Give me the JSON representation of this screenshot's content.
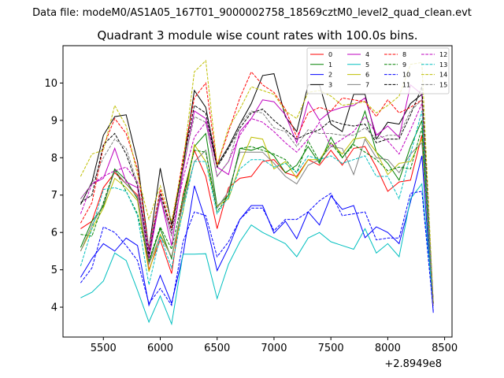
{
  "suptitle": "Data file: modeM0/AS1A05_167T01_9000002758_18569cztM0_level2_quad_clean.evt",
  "chart_data": {
    "type": "line",
    "title": "Quadrant 3 module wise count rates with 100.0s bins.",
    "xlabel": "",
    "ylabel": "",
    "x_offset_label": "+2.8949e8",
    "xlim": [
      5145,
      8565
    ],
    "ylim": [
      3.2,
      11.0
    ],
    "xticks": [
      5500,
      6000,
      6500,
      7000,
      7500,
      8000,
      8500
    ],
    "yticks": [
      4,
      5,
      6,
      7,
      8,
      9,
      10
    ],
    "x": [
      5300,
      5400,
      5500,
      5600,
      5700,
      5800,
      5900,
      6000,
      6100,
      6200,
      6300,
      6400,
      6500,
      6600,
      6700,
      6800,
      6900,
      7000,
      7100,
      7200,
      7300,
      7400,
      7500,
      7600,
      7700,
      7800,
      7900,
      8000,
      8100,
      8200,
      8300,
      8400
    ],
    "legend_location": "top-right",
    "series": [
      {
        "name": "0",
        "color": "#ff0000",
        "dash": "solid",
        "values": [
          6.1,
          6.3,
          7.2,
          7.6,
          7.3,
          7.0,
          5.0,
          5.8,
          4.9,
          7.0,
          8.2,
          7.5,
          6.1,
          7.2,
          7.45,
          7.5,
          7.9,
          7.95,
          7.6,
          7.5,
          7.95,
          7.8,
          8.2,
          7.8,
          8.25,
          8.3,
          7.75,
          7.1,
          7.35,
          7.4,
          8.6,
          4.1
        ]
      },
      {
        "name": "1",
        "color": "#008000",
        "dash": "solid",
        "values": [
          5.6,
          6.3,
          6.7,
          7.7,
          7.4,
          6.9,
          5.2,
          6.1,
          5.3,
          6.8,
          8.3,
          8.65,
          6.7,
          7.0,
          8.25,
          8.2,
          8.3,
          8.05,
          7.6,
          7.8,
          8.3,
          7.85,
          8.55,
          8.0,
          8.4,
          9.25,
          8.15,
          7.85,
          7.4,
          8.3,
          9.0,
          4.1
        ]
      },
      {
        "name": "2",
        "color": "#0000ff",
        "dash": "solid",
        "values": [
          4.8,
          5.3,
          5.7,
          5.5,
          5.85,
          5.65,
          4.05,
          4.85,
          4.1,
          5.4,
          7.25,
          6.3,
          4.98,
          5.6,
          6.35,
          6.72,
          6.72,
          5.98,
          6.3,
          5.83,
          6.55,
          6.2,
          6.98,
          6.62,
          6.72,
          5.86,
          6.15,
          6.0,
          5.7,
          6.82,
          8.05,
          3.85
        ]
      },
      {
        "name": "3",
        "color": "#000000",
        "dash": "solid",
        "values": [
          6.75,
          7.35,
          8.6,
          9.1,
          9.15,
          7.9,
          5.55,
          7.72,
          6.2,
          7.75,
          9.8,
          9.35,
          7.8,
          8.3,
          8.9,
          9.45,
          10.2,
          10.25,
          9.1,
          8.7,
          9.95,
          9.95,
          8.9,
          8.7,
          9.7,
          9.7,
          8.5,
          8.95,
          8.9,
          9.45,
          9.7,
          4.1
        ]
      },
      {
        "name": "4",
        "color": "#bf00bf",
        "dash": "solid",
        "values": [
          6.9,
          7.3,
          7.45,
          8.25,
          7.35,
          7.2,
          5.3,
          6.95,
          5.65,
          7.65,
          9.25,
          9.05,
          7.75,
          7.55,
          8.7,
          9.05,
          9.55,
          9.5,
          9.15,
          8.4,
          9.5,
          9.0,
          9.25,
          9.35,
          9.4,
          9.6,
          8.6,
          8.85,
          8.55,
          9.95,
          9.7,
          4.1
        ]
      },
      {
        "name": "5",
        "color": "#00bfbf",
        "dash": "solid",
        "values": [
          4.25,
          4.4,
          4.7,
          5.45,
          5.25,
          4.45,
          3.6,
          4.3,
          3.55,
          5.42,
          5.42,
          5.43,
          4.23,
          5.15,
          5.75,
          6.2,
          6.0,
          5.85,
          5.7,
          5.35,
          5.85,
          6.0,
          5.75,
          5.65,
          5.55,
          6.1,
          5.45,
          5.7,
          5.35,
          6.9,
          7.3,
          4.1
        ]
      },
      {
        "name": "6",
        "color": "#bfbf00",
        "dash": "solid",
        "values": [
          5.5,
          6.1,
          6.65,
          7.45,
          7.2,
          6.85,
          4.95,
          5.95,
          5.35,
          6.55,
          8.35,
          7.9,
          6.7,
          6.9,
          7.8,
          8.55,
          8.5,
          7.7,
          7.9,
          7.45,
          7.95,
          7.95,
          8.4,
          8.1,
          8.5,
          8.55,
          8.15,
          7.55,
          7.85,
          7.9,
          8.5,
          4.1
        ]
      },
      {
        "name": "7",
        "color": "#808080",
        "dash": "solid",
        "values": [
          5.5,
          6.2,
          6.75,
          7.65,
          7.3,
          6.95,
          5.15,
          5.9,
          5.35,
          6.75,
          7.9,
          8.2,
          6.65,
          7.1,
          8.15,
          8.15,
          8.15,
          7.85,
          7.5,
          7.3,
          7.8,
          7.95,
          8.3,
          8.25,
          7.55,
          8.5,
          8.0,
          7.95,
          7.6,
          8.1,
          8.4,
          4.1
        ]
      },
      {
        "name": "8",
        "color": "#ff0000",
        "dash": "dashed",
        "values": [
          6.25,
          6.8,
          8.3,
          9.05,
          8.65,
          7.7,
          5.55,
          7.15,
          6.1,
          8.0,
          9.6,
          10.0,
          7.8,
          8.7,
          9.6,
          10.3,
          9.95,
          9.75,
          9.3,
          8.55,
          9.2,
          9.35,
          9.25,
          9.6,
          9.55,
          9.5,
          9.1,
          9.55,
          9.2,
          9.35,
          9.55,
          4.1
        ]
      },
      {
        "name": "9",
        "color": "#008000",
        "dash": "dashed",
        "values": [
          5.95,
          5.9,
          6.8,
          7.7,
          7.1,
          6.5,
          5.25,
          6.15,
          5.55,
          6.95,
          8.2,
          8.15,
          6.55,
          7.0,
          8.25,
          8.3,
          8.2,
          8.1,
          7.95,
          7.6,
          8.45,
          7.9,
          8.4,
          8.0,
          8.35,
          8.15,
          7.95,
          7.65,
          7.75,
          7.7,
          8.8,
          4.1
        ]
      },
      {
        "name": "10",
        "color": "#0000ff",
        "dash": "dashed",
        "values": [
          4.65,
          5.05,
          6.15,
          6.0,
          5.65,
          5.25,
          4.1,
          4.5,
          4.05,
          5.75,
          6.55,
          6.45,
          5.35,
          5.75,
          6.35,
          6.65,
          6.65,
          6.05,
          6.35,
          6.35,
          6.55,
          6.85,
          7.05,
          6.45,
          6.5,
          6.55,
          5.8,
          5.85,
          5.85,
          7.05,
          7.1,
          3.9
        ]
      },
      {
        "name": "11",
        "color": "#000000",
        "dash": "dashed",
        "values": [
          6.8,
          7.0,
          8.35,
          8.65,
          8.1,
          7.25,
          5.4,
          7.05,
          6.05,
          7.85,
          9.4,
          9.2,
          7.75,
          8.25,
          8.8,
          9.2,
          9.3,
          9.0,
          8.75,
          8.5,
          8.65,
          8.75,
          9.0,
          8.9,
          8.85,
          8.9,
          8.4,
          8.5,
          8.5,
          9.15,
          9.9,
          4.05
        ]
      },
      {
        "name": "12",
        "color": "#bf00bf",
        "dash": "dashed",
        "values": [
          6.5,
          7.3,
          7.5,
          7.65,
          7.75,
          7.35,
          5.5,
          6.9,
          5.95,
          7.45,
          8.55,
          8.95,
          7.5,
          7.9,
          8.6,
          9.05,
          8.95,
          8.7,
          8.4,
          8.15,
          8.5,
          8.95,
          8.3,
          8.5,
          8.7,
          9.1,
          8.65,
          8.45,
          8.1,
          8.75,
          9.45,
          4.05
        ]
      },
      {
        "name": "13",
        "color": "#00bfbf",
        "dash": "dashed",
        "values": [
          5.1,
          6.1,
          7.15,
          7.2,
          7.1,
          6.45,
          4.6,
          5.9,
          5.05,
          6.6,
          7.9,
          7.9,
          6.5,
          6.95,
          7.7,
          7.95,
          7.95,
          7.75,
          7.85,
          7.6,
          8.05,
          7.95,
          8.05,
          7.85,
          7.95,
          8.05,
          7.5,
          7.5,
          6.9,
          8.1,
          9.25,
          4.1
        ]
      },
      {
        "name": "14",
        "color": "#bfbf00",
        "dash": "dashed",
        "values": [
          7.5,
          8.1,
          8.2,
          9.4,
          8.85,
          7.55,
          6.35,
          7.25,
          6.3,
          7.85,
          10.3,
          10.6,
          7.8,
          8.8,
          9.3,
          9.9,
          9.8,
          9.7,
          9.25,
          9.05,
          9.75,
          9.8,
          9.65,
          9.4,
          9.45,
          9.5,
          9.2,
          9.4,
          9.65,
          10.5,
          10.55,
          4.1
        ]
      },
      {
        "name": "15",
        "color": "#808080",
        "dash": "dashed",
        "values": [
          6.9,
          7.3,
          8.0,
          8.5,
          8.25,
          7.3,
          5.6,
          7.0,
          5.9,
          7.75,
          9.1,
          8.95,
          7.5,
          7.9,
          8.9,
          9.25,
          9.2,
          8.8,
          8.7,
          8.3,
          8.75,
          8.65,
          8.65,
          8.6,
          8.6,
          8.8,
          8.5,
          8.6,
          8.6,
          9.25,
          9.55,
          4.1
        ]
      }
    ]
  }
}
